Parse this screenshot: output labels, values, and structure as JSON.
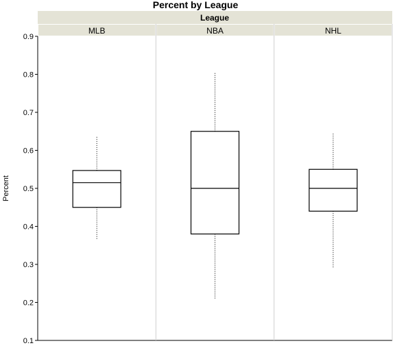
{
  "chart_data": {
    "type": "boxplot",
    "title": "Percent by League",
    "group_header": "League",
    "ylabel": "Percent",
    "ylim": [
      0.1,
      0.9
    ],
    "yticks": [
      "0.1",
      "0.2",
      "0.3",
      "0.4",
      "0.5",
      "0.6",
      "0.7",
      "0.8",
      "0.9"
    ],
    "categories": [
      "MLB",
      "NBA",
      "NHL"
    ],
    "boxes": [
      {
        "category": "MLB",
        "whisker_low": 0.365,
        "q1": 0.45,
        "median": 0.515,
        "q3": 0.547,
        "whisker_high": 0.636
      },
      {
        "category": "NBA",
        "whisker_low": 0.21,
        "q1": 0.38,
        "median": 0.5,
        "q3": 0.65,
        "whisker_high": 0.805
      },
      {
        "category": "NHL",
        "whisker_low": 0.29,
        "q1": 0.44,
        "median": 0.5,
        "q3": 0.55,
        "whisker_high": 0.646
      }
    ],
    "grid": false,
    "legend": "none",
    "colors": {
      "header_bg": "#e4e3d6",
      "panel_divider": "#cfcfcf",
      "box_stroke": "#000000"
    }
  }
}
